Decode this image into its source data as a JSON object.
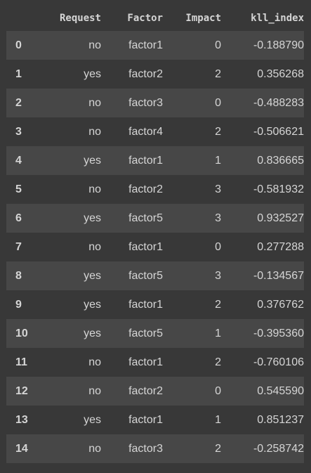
{
  "table": {
    "columns": [
      "",
      "Request",
      "Factor",
      "Impact",
      "kll_index"
    ],
    "rows": [
      {
        "index": "0",
        "request": "no",
        "factor": "factor1",
        "impact": "0",
        "kll_index": "-0.188790"
      },
      {
        "index": "1",
        "request": "yes",
        "factor": "factor2",
        "impact": "2",
        "kll_index": "0.356268"
      },
      {
        "index": "2",
        "request": "no",
        "factor": "factor3",
        "impact": "0",
        "kll_index": "-0.488283"
      },
      {
        "index": "3",
        "request": "no",
        "factor": "factor4",
        "impact": "2",
        "kll_index": "-0.506621"
      },
      {
        "index": "4",
        "request": "yes",
        "factor": "factor1",
        "impact": "1",
        "kll_index": "0.836665"
      },
      {
        "index": "5",
        "request": "no",
        "factor": "factor2",
        "impact": "3",
        "kll_index": "-0.581932"
      },
      {
        "index": "6",
        "request": "yes",
        "factor": "factor5",
        "impact": "3",
        "kll_index": "0.932527"
      },
      {
        "index": "7",
        "request": "no",
        "factor": "factor1",
        "impact": "0",
        "kll_index": "0.277288"
      },
      {
        "index": "8",
        "request": "yes",
        "factor": "factor5",
        "impact": "3",
        "kll_index": "-0.134567"
      },
      {
        "index": "9",
        "request": "yes",
        "factor": "factor1",
        "impact": "2",
        "kll_index": "0.376762"
      },
      {
        "index": "10",
        "request": "yes",
        "factor": "factor5",
        "impact": "1",
        "kll_index": "-0.395360"
      },
      {
        "index": "11",
        "request": "no",
        "factor": "factor1",
        "impact": "2",
        "kll_index": "-0.760106"
      },
      {
        "index": "12",
        "request": "no",
        "factor": "factor2",
        "impact": "0",
        "kll_index": "0.545590"
      },
      {
        "index": "13",
        "request": "yes",
        "factor": "factor1",
        "impact": "1",
        "kll_index": "0.851237"
      },
      {
        "index": "14",
        "request": "no",
        "factor": "factor3",
        "impact": "2",
        "kll_index": "-0.258742"
      }
    ]
  },
  "colors": {
    "background": "#383838",
    "row_stripe": "#474747",
    "text": "#d5d5d5"
  }
}
